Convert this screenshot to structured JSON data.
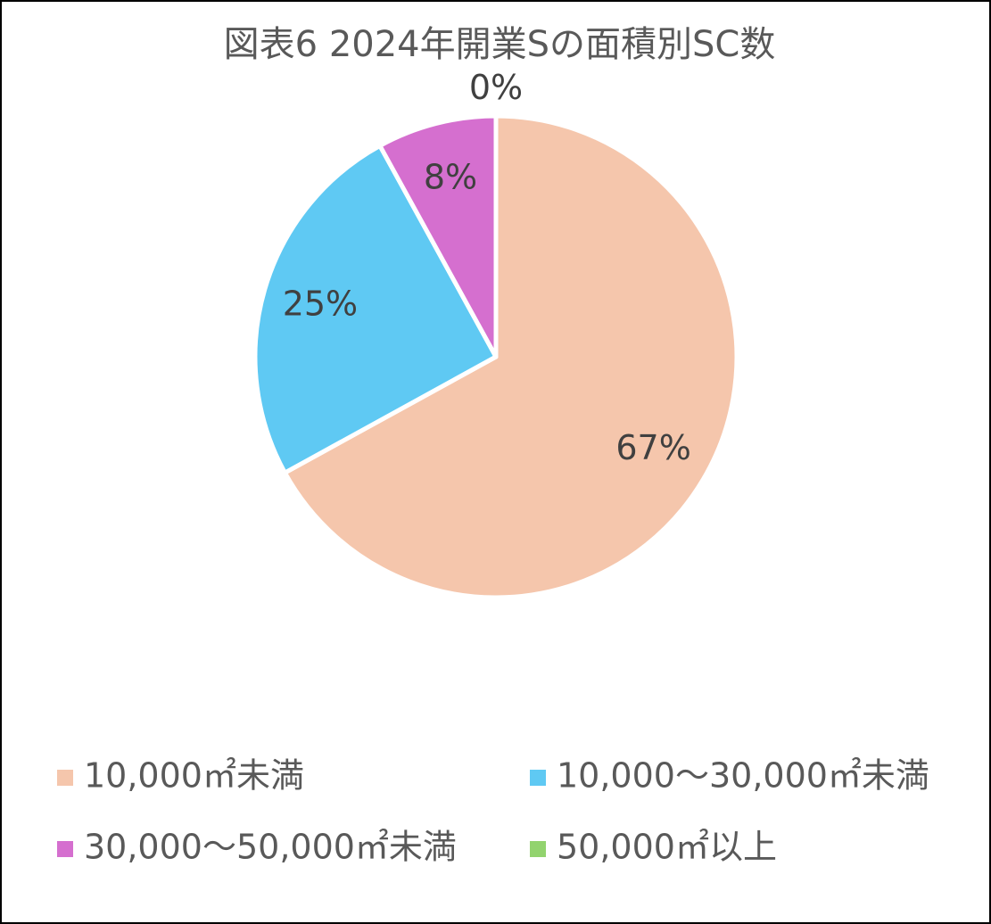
{
  "chart_data": {
    "type": "pie",
    "title": "図表6 2024年開業Sの面積別SC数",
    "categories": [
      "10,000㎡未満",
      "10,000～30,000㎡未満",
      "30,000～50,000㎡未満",
      "50,000㎡以上"
    ],
    "values": [
      67,
      25,
      8,
      0
    ],
    "value_labels": [
      "67%",
      "25%",
      "8%",
      "0%"
    ],
    "colors": [
      "#F5C6AC",
      "#5FC9F3",
      "#D56FCF",
      "#92D36E"
    ]
  }
}
